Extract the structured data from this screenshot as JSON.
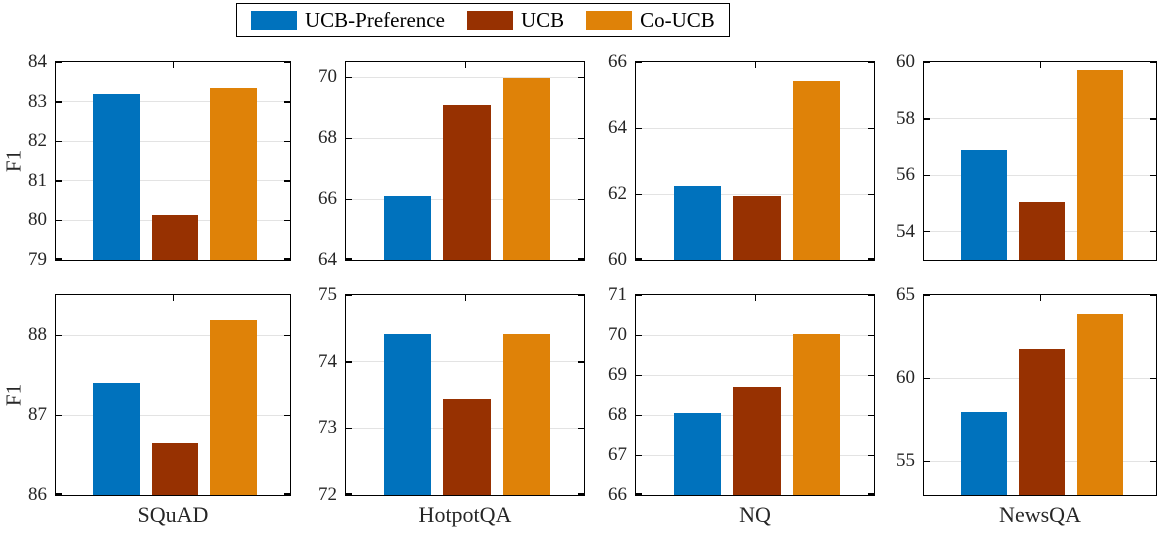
{
  "ylabel": "F1",
  "legend": {
    "entries": [
      {
        "label": "UCB-Preference",
        "color": "#0072BD"
      },
      {
        "label": "UCB",
        "color": "#973101"
      },
      {
        "label": "Co-UCB",
        "color": "#DF8208"
      }
    ]
  },
  "chart_data": [
    {
      "type": "bar",
      "dataset": "SQuAD",
      "xlabel": "",
      "ylabel": "F1",
      "ylim": [
        79,
        84
      ],
      "yticks": [
        79,
        80,
        81,
        82,
        83,
        84
      ],
      "grid": true,
      "series": [
        {
          "name": "UCB-Preference",
          "value": 83.2
        },
        {
          "name": "UCB",
          "value": 80.15
        },
        {
          "name": "Co-UCB",
          "value": 83.35
        }
      ]
    },
    {
      "type": "bar",
      "dataset": "HotpotQA",
      "xlabel": "",
      "ylabel": "F1",
      "ylim": [
        64,
        70.5
      ],
      "yticks": [
        64,
        66,
        68,
        70
      ],
      "grid": true,
      "series": [
        {
          "name": "UCB-Preference",
          "value": 66.1
        },
        {
          "name": "UCB",
          "value": 69.1
        },
        {
          "name": "Co-UCB",
          "value": 70.0
        }
      ]
    },
    {
      "type": "bar",
      "dataset": "NQ",
      "xlabel": "",
      "ylabel": "F1",
      "ylim": [
        60,
        66
      ],
      "yticks": [
        60,
        62,
        64,
        66
      ],
      "grid": true,
      "series": [
        {
          "name": "UCB-Preference",
          "value": 62.25
        },
        {
          "name": "UCB",
          "value": 61.95
        },
        {
          "name": "Co-UCB",
          "value": 65.45
        }
      ]
    },
    {
      "type": "bar",
      "dataset": "NewsQA",
      "xlabel": "",
      "ylabel": "F1",
      "ylim": [
        53,
        60
      ],
      "yticks": [
        54,
        56,
        58,
        60
      ],
      "grid": true,
      "series": [
        {
          "name": "UCB-Preference",
          "value": 56.9
        },
        {
          "name": "UCB",
          "value": 55.05
        },
        {
          "name": "Co-UCB",
          "value": 59.75
        }
      ]
    },
    {
      "type": "bar",
      "dataset": "SQuAD",
      "xlabel": "SQuAD",
      "ylabel": "F1",
      "ylim": [
        86,
        88.5
      ],
      "yticks": [
        86,
        87,
        88
      ],
      "grid": true,
      "series": [
        {
          "name": "UCB-Preference",
          "value": 87.4
        },
        {
          "name": "UCB",
          "value": 86.65
        },
        {
          "name": "Co-UCB",
          "value": 88.2
        }
      ]
    },
    {
      "type": "bar",
      "dataset": "HotpotQA",
      "xlabel": "HotpotQA",
      "ylabel": "F1",
      "ylim": [
        72,
        75
      ],
      "yticks": [
        72,
        73,
        74,
        75
      ],
      "grid": true,
      "series": [
        {
          "name": "UCB-Preference",
          "value": 74.42
        },
        {
          "name": "UCB",
          "value": 73.45
        },
        {
          "name": "Co-UCB",
          "value": 74.42
        }
      ]
    },
    {
      "type": "bar",
      "dataset": "NQ",
      "xlabel": "NQ",
      "ylabel": "F1",
      "ylim": [
        66,
        71
      ],
      "yticks": [
        66,
        67,
        68,
        69,
        70,
        71
      ],
      "grid": true,
      "series": [
        {
          "name": "UCB-Preference",
          "value": 68.05
        },
        {
          "name": "UCB",
          "value": 68.7
        },
        {
          "name": "Co-UCB",
          "value": 70.05
        }
      ]
    },
    {
      "type": "bar",
      "dataset": "NewsQA",
      "xlabel": "NewsQA",
      "ylabel": "F1",
      "ylim": [
        53,
        65
      ],
      "yticks": [
        55,
        60,
        65
      ],
      "grid": true,
      "series": [
        {
          "name": "UCB-Preference",
          "value": 58.0
        },
        {
          "name": "UCB",
          "value": 61.8
        },
        {
          "name": "Co-UCB",
          "value": 63.9
        }
      ]
    }
  ]
}
